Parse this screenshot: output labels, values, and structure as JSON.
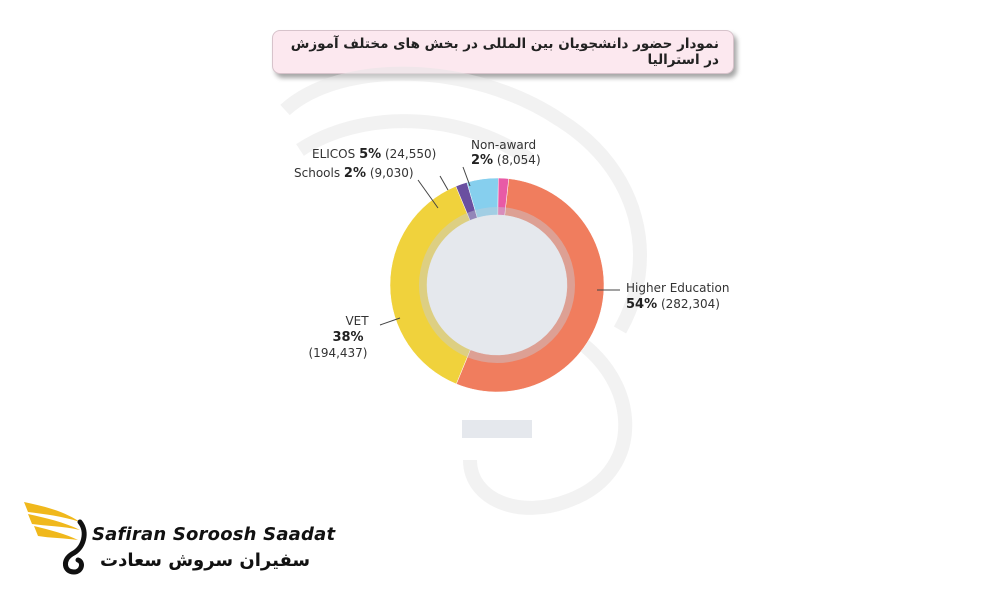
{
  "title": "نمودار حضور دانشجویان بین المللی در بخش های مختلف آموزش در استرالیا",
  "logo": {
    "name_en": "Safiran Soroosh Saadat",
    "name_fa": "سفیران سروش سعادت"
  },
  "colors": {
    "higher_education": "#f07d5e",
    "vet": "#f0d23c",
    "schools": "#6a4fa0",
    "elicos": "#86cfee",
    "non_award": "#e85aa6"
  },
  "chart_data": {
    "type": "pie",
    "variant": "donut",
    "title": "نمودار حضور دانشجویان بین المللی در بخش های مختلف آموزش در استرالیا",
    "slices": [
      {
        "label": "Higher Education",
        "percent": 54,
        "percent_text": "54%",
        "count": 282304,
        "count_text": "(282,304)",
        "color": "#f07d5e"
      },
      {
        "label": "VET",
        "percent": 38,
        "percent_text": "38%",
        "count": 194437,
        "count_text": "(194,437)",
        "color": "#f0d23c"
      },
      {
        "label": "Schools",
        "percent": 2,
        "percent_text": "2%",
        "count": 9030,
        "count_text": "(9,030)",
        "color": "#6a4fa0"
      },
      {
        "label": "ELICOS",
        "percent": 5,
        "percent_text": "5%",
        "count": 24550,
        "count_text": "(24,550)",
        "color": "#86cfee"
      },
      {
        "label": "Non-award",
        "percent": 2,
        "percent_text": "2%",
        "count": 8054,
        "count_text": "(8,054)",
        "color": "#e85aa6"
      }
    ]
  }
}
